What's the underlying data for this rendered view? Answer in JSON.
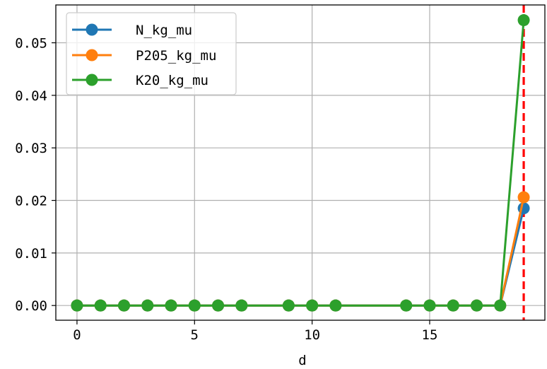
{
  "chart_data": {
    "type": "line",
    "title": "",
    "xlabel": "d",
    "ylabel": "",
    "x": [
      0,
      1,
      2,
      3,
      4,
      5,
      6,
      7,
      9,
      10,
      11,
      14,
      15,
      16,
      17,
      18,
      19
    ],
    "series": [
      {
        "name": "N_kg_mu",
        "color": "#1f77b4",
        "values": [
          0,
          0,
          0,
          0,
          0,
          0,
          0,
          0,
          0,
          0,
          0,
          0,
          0,
          0,
          0,
          0,
          0.0185
        ]
      },
      {
        "name": "P2O5_kg_mu",
        "color": "#ff7f0e",
        "values": [
          0,
          0,
          0,
          0,
          0,
          0,
          0,
          0,
          0,
          0,
          0,
          0,
          0,
          0,
          0,
          0,
          0.0206
        ]
      },
      {
        "name": "K2O_kg_mu",
        "color": "#2ca02c",
        "values": [
          0,
          0,
          0,
          0,
          0,
          0,
          0,
          0,
          0,
          0,
          0,
          0,
          0,
          0,
          0,
          0,
          0.0543
        ]
      }
    ],
    "xlim": [
      -0.9,
      19.9
    ],
    "ylim": [
      -0.0028,
      0.0572
    ],
    "x_ticks": [
      0,
      5,
      10,
      15
    ],
    "x_tick_labels": [
      "0",
      "5",
      "10",
      "15"
    ],
    "y_ticks": [
      0,
      0.01,
      0.02,
      0.03,
      0.04,
      0.05
    ],
    "y_tick_labels": [
      "0.00",
      "0.01",
      "0.02",
      "0.03",
      "0.04",
      "0.05"
    ],
    "vline": {
      "x": 19,
      "color": "#ff0000",
      "style": "dashed"
    },
    "grid": true,
    "legend_position": "top-left",
    "legend_labels": [
      "N_kg_mu",
      "P205_kg_mu",
      "K20_kg_mu"
    ]
  }
}
